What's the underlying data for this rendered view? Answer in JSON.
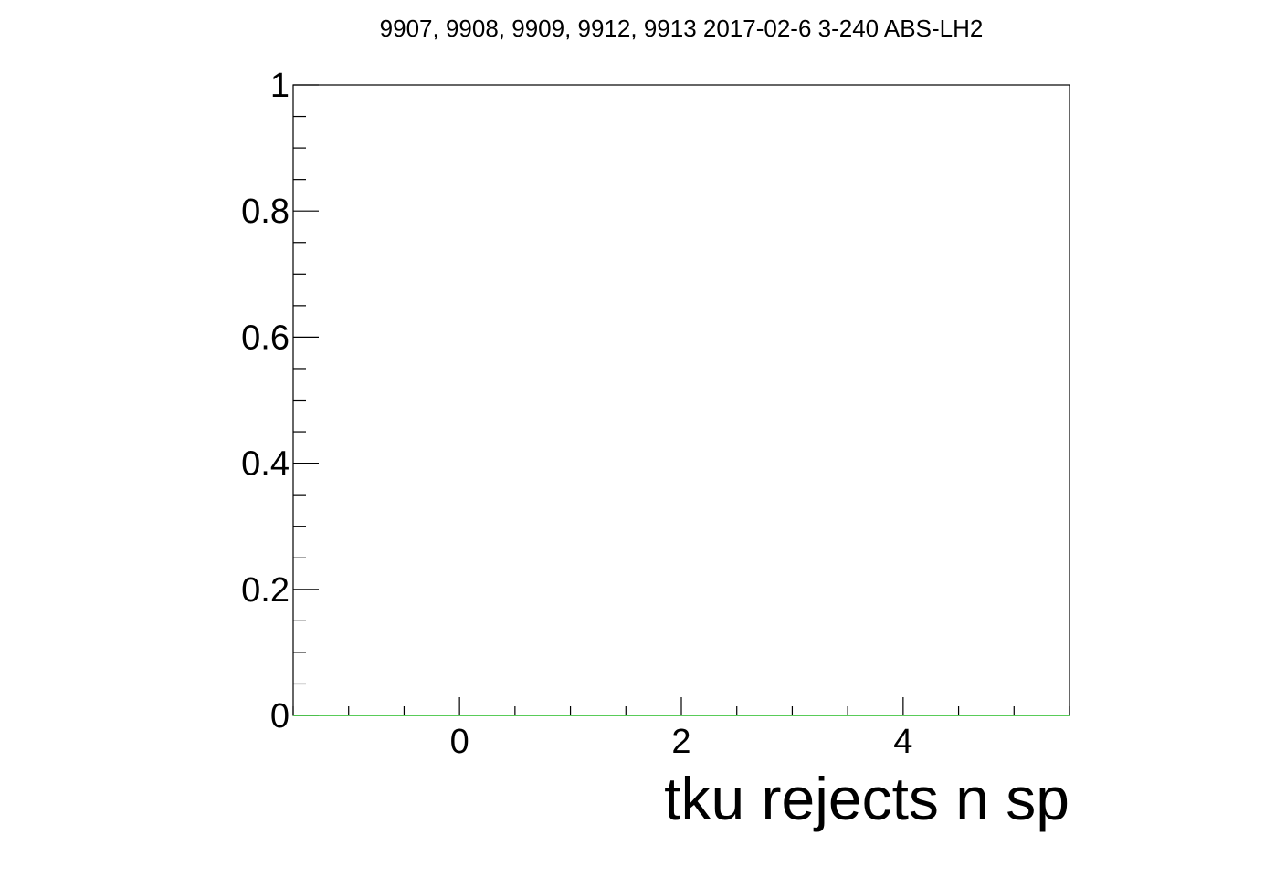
{
  "chart_data": {
    "type": "line",
    "title": "9907, 9908, 9909, 9912, 9913 2017-02-6 3-240 ABS-LH2",
    "xlabel": "tku rejects n sp",
    "ylabel": "",
    "xlim": [
      -1.5,
      5.5
    ],
    "ylim": [
      0,
      1
    ],
    "x_ticks": [
      0,
      2,
      4
    ],
    "x_tick_labels": [
      "0",
      "2",
      "4"
    ],
    "y_ticks": [
      0,
      0.2,
      0.4,
      0.6,
      0.8,
      1
    ],
    "y_tick_labels": [
      "0",
      "0.2",
      "0.4",
      "0.6",
      "0.8",
      "1"
    ],
    "grid": false,
    "series": [
      {
        "x": [
          -1.5,
          5.5
        ],
        "y": [
          0,
          0
        ],
        "color": "#33cc33"
      }
    ]
  }
}
